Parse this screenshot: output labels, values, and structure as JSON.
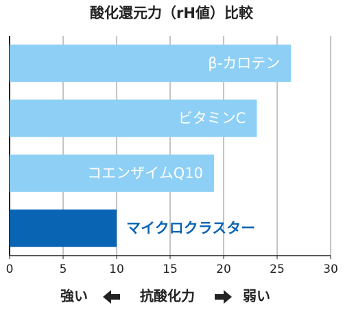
{
  "chart_data": {
    "type": "barh",
    "title": "酸化還元力（rH値）比較",
    "categories": [
      "β-カロテン",
      "ビタミンC",
      "コエンザイムQ10",
      "マイクロクラスター"
    ],
    "values": [
      26.3,
      23.1,
      19.1,
      10
    ],
    "colors": [
      "#8ed0f5",
      "#8ed0f5",
      "#8ed0f5",
      "#0a64b4"
    ],
    "xlim": [
      0,
      30
    ],
    "xticks": [
      0,
      5,
      10,
      15,
      20,
      25,
      30
    ],
    "grid": true,
    "xlabel_left": "強い",
    "xlabel": "抗酸化力",
    "xlabel_right": "弱い"
  }
}
